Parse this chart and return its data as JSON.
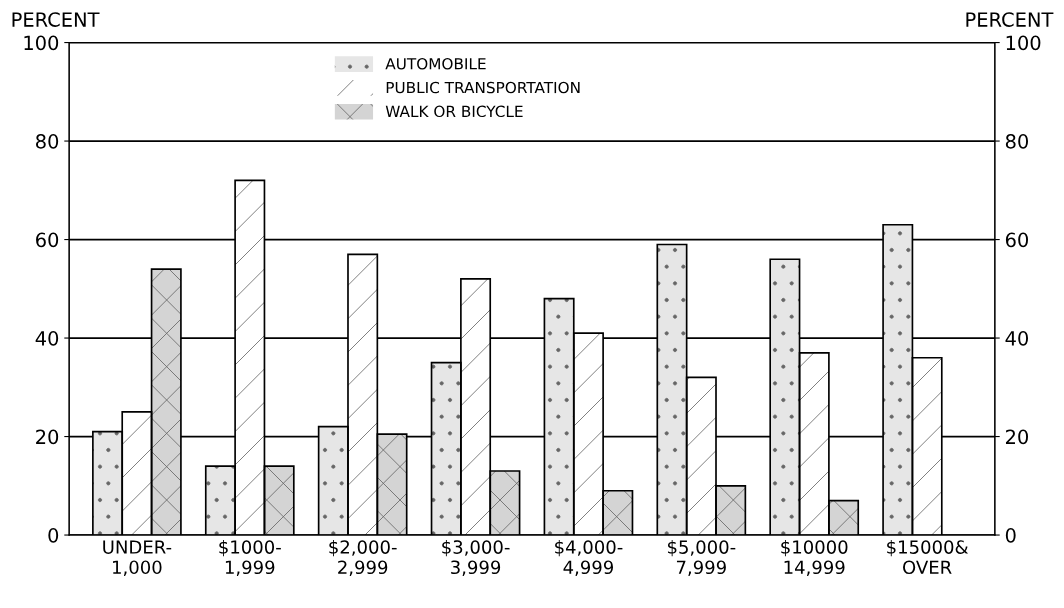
{
  "chart_data": {
    "type": "bar",
    "ylabel": "PERCENT",
    "y2label": "PERCENT",
    "categories": [
      "UNDER-\n1,000",
      "$1000-\n1,999",
      "$2,000-\n2,999",
      "$3,000-\n3,999",
      "$4,000-\n4,999",
      "$5,000-\n7,999",
      "$10000\n14,999",
      "$15000&\nOVER"
    ],
    "series": [
      {
        "name": "AUTOMOBILE",
        "color": "#e6e6e6",
        "values": [
          21,
          14,
          22,
          35,
          48,
          59,
          56,
          63
        ]
      },
      {
        "name": "PUBLIC TRANSPORTATION",
        "color": "#ffffff",
        "values": [
          25,
          72,
          57,
          52,
          41,
          32,
          37,
          36
        ]
      },
      {
        "name": "WALK OR BICYCLE",
        "color": "#d4d4d4",
        "values": [
          54,
          14,
          20.5,
          13,
          9,
          10,
          7,
          null
        ]
      }
    ],
    "ylim": [
      0,
      100
    ],
    "yticks": [
      0,
      20,
      40,
      60,
      80,
      100
    ],
    "y2lim": [
      0,
      100
    ],
    "y2ticks": [
      0,
      20,
      40,
      60,
      80,
      100
    ],
    "grid": "y",
    "legend": "top"
  }
}
